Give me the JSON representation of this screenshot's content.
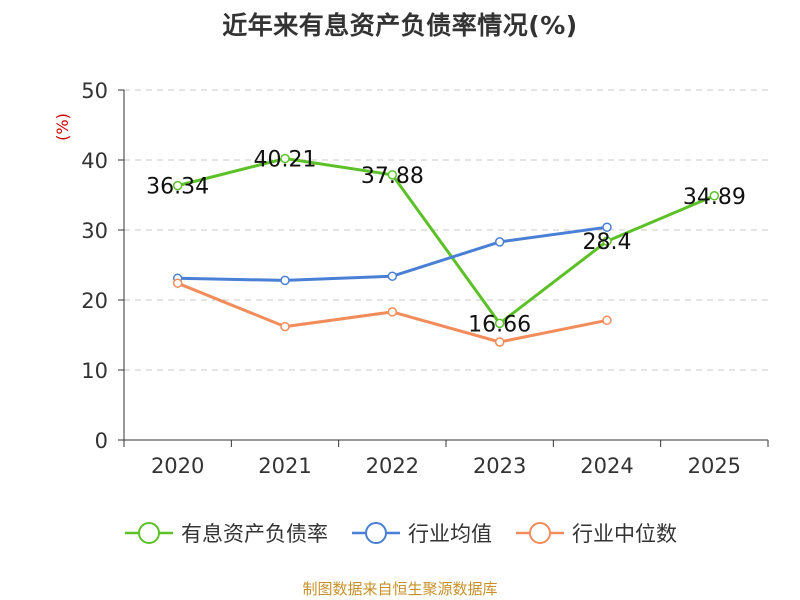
{
  "chart_data": {
    "type": "line",
    "title": "近年来有息资产负债率情况(%)",
    "ylabel": "(%)",
    "xlabel": "",
    "categories": [
      "2020",
      "2021",
      "2022",
      "2023",
      "2024",
      "2025"
    ],
    "ylim": [
      0,
      50
    ],
    "yticks": [
      0,
      10,
      20,
      30,
      40,
      50
    ],
    "grid": true,
    "legend_position": "bottom",
    "series": [
      {
        "name": "有息资产负债率",
        "color": "#5cc128",
        "values": [
          36.34,
          40.21,
          37.88,
          16.66,
          28.4,
          34.89
        ],
        "labels": [
          "36.34",
          "40.21",
          "37.88",
          "16.66",
          "28.4",
          "34.89"
        ]
      },
      {
        "name": "行业均值",
        "color": "#4a7fd6",
        "values": [
          23.1,
          22.8,
          23.4,
          28.3,
          30.4,
          null
        ]
      },
      {
        "name": "行业中位数",
        "color": "#f28c5a",
        "values": [
          22.4,
          16.2,
          18.3,
          14.0,
          17.1,
          null
        ]
      }
    ],
    "source": "制图数据来自恒生聚源数据库",
    "ylabel_color": "#cc0000"
  }
}
